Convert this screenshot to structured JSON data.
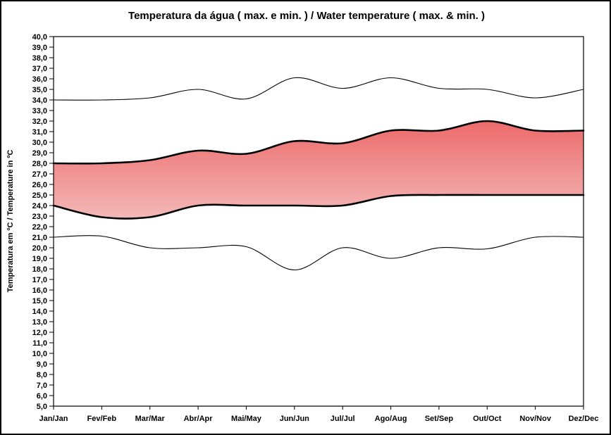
{
  "chart_data": {
    "type": "line",
    "title": "Temperatura da água ( max. e min. ) / Water temperature ( max. & min. )",
    "y_axis_title": "Temperatura em ºC / Temperature in ºC",
    "xlabel": "",
    "ylim": [
      5,
      40
    ],
    "y_step": 1,
    "decimal_format": "comma",
    "grid": false,
    "legend_position": "none",
    "y_tick_labels": [
      "40,0",
      "39,0",
      "38,0",
      "37,0",
      "36,0",
      "35,0",
      "34,0",
      "33,0",
      "32,0",
      "31,0",
      "30,0",
      "29,0",
      "28,0",
      "27,0",
      "26,0",
      "25,0",
      "24,0",
      "23,0",
      "22,0",
      "21,0",
      "20,0",
      "19,0",
      "18,0",
      "17,0",
      "16,0",
      "15,0",
      "14,0",
      "13,0",
      "12,0",
      "11,0",
      "10,0",
      "9,0",
      "8,0",
      "7,0",
      "6,0",
      "5,0"
    ],
    "categories": [
      "Jan/Jan",
      "Fev/Feb",
      "Mar/Mar",
      "Abr/Apr",
      "Mai/May",
      "Jun/Jun",
      "Jul/Jul",
      "Ago/Aug",
      "Set/Sep",
      "Out/Oct",
      "Nov/Nov",
      "Dez/Dec"
    ],
    "series": [
      {
        "name": "upper-thin-line",
        "style": "thin",
        "color": "#000000",
        "values": [
          34.0,
          34.0,
          34.2,
          35.0,
          34.1,
          36.1,
          35.1,
          36.1,
          35.1,
          35.0,
          34.2,
          35.0
        ]
      },
      {
        "name": "water-max-thick-line",
        "style": "thick",
        "color": "#000000",
        "values": [
          28.0,
          28.0,
          28.3,
          29.2,
          28.9,
          30.1,
          29.9,
          31.1,
          31.1,
          32.0,
          31.1,
          31.1
        ]
      },
      {
        "name": "water-min-thick-line",
        "style": "thick",
        "color": "#000000",
        "values": [
          24.0,
          22.9,
          22.9,
          24.0,
          24.0,
          24.0,
          24.0,
          24.9,
          25.0,
          25.0,
          25.0,
          25.0
        ]
      },
      {
        "name": "lower-thin-line",
        "style": "thin",
        "color": "#000000",
        "values": [
          21.0,
          21.1,
          20.0,
          20.0,
          20.1,
          17.9,
          20.0,
          19.0,
          20.0,
          19.9,
          21.0,
          21.0
        ]
      }
    ],
    "band": {
      "between": [
        "water-max-thick-line",
        "water-min-thick-line"
      ],
      "gradient_top": "#ed6a6a",
      "gradient_bottom": "#f3b8b8"
    },
    "line_color": "#000000",
    "background": "#ffffff",
    "border_color": "#000000"
  }
}
